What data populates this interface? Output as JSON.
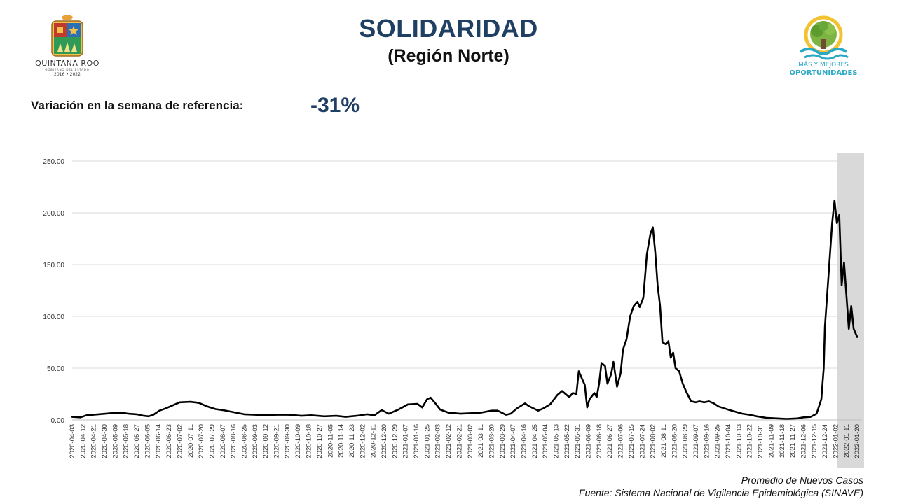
{
  "header": {
    "title": "SOLIDARIDAD",
    "subtitle": "(Región Norte)"
  },
  "logo_left": {
    "name": "QUINTANA ROO",
    "line2": "GOBIERNO DEL ESTADO",
    "line3": "2016 • 2022"
  },
  "logo_right": {
    "line1": "MÁS Y MEJORES",
    "line2": "OPORTUNIDADES"
  },
  "variation": {
    "label": "Variación en la semana de referencia:",
    "value": "-31%"
  },
  "captions": {
    "series": "Promedio de Nuevos Casos",
    "source": "Fuente: Sistema Nacional de Vigilancia Epidemiológica (SINAVE)"
  },
  "colors": {
    "title": "#1f3f63",
    "line": "#000000",
    "grid": "#d9d9d9",
    "shade": "#d9d9d9",
    "logo_teal": "#2aa8c4"
  },
  "chart_data": {
    "type": "line",
    "title": "",
    "xlabel": "",
    "ylabel": "",
    "ylim": [
      0,
      250
    ],
    "y_ticks": [
      "0.00",
      "50.00",
      "100.00",
      "150.00",
      "200.00",
      "250.00"
    ],
    "grid": true,
    "x_range": [
      "2020-04-03",
      "2022-01-24"
    ],
    "x_tick_labels": [
      "2020-04-03",
      "2020-04-12",
      "2020-04-21",
      "2020-04-30",
      "2020-05-09",
      "2020-05-18",
      "2020-05-27",
      "2020-06-05",
      "2020-06-14",
      "2020-06-23",
      "2020-07-02",
      "2020-07-11",
      "2020-07-20",
      "2020-07-29",
      "2020-08-07",
      "2020-08-16",
      "2020-08-25",
      "2020-09-03",
      "2020-09-12",
      "2020-09-21",
      "2020-09-30",
      "2020-10-09",
      "2020-10-18",
      "2020-10-27",
      "2020-11-05",
      "2020-11-14",
      "2020-11-23",
      "2020-12-02",
      "2020-12-11",
      "2020-12-20",
      "2020-12-29",
      "2021-01-07",
      "2021-01-16",
      "2021-01-25",
      "2021-02-03",
      "2021-02-12",
      "2021-02-21",
      "2021-03-02",
      "2021-03-11",
      "2021-03-20",
      "2021-03-29",
      "2021-04-07",
      "2021-04-16",
      "2021-04-25",
      "2021-05-04",
      "2021-05-13",
      "2021-05-22",
      "2021-05-31",
      "2021-06-09",
      "2021-06-18",
      "2021-06-27",
      "2021-07-06",
      "2021-07-15",
      "2021-07-24",
      "2021-08-02",
      "2021-08-11",
      "2021-08-20",
      "2021-08-29",
      "2021-09-07",
      "2021-09-16",
      "2021-09-25",
      "2021-10-04",
      "2021-10-13",
      "2021-10-22",
      "2021-10-31",
      "2021-11-09",
      "2021-11-18",
      "2021-11-27",
      "2021-12-06",
      "2021-12-15",
      "2021-12-24",
      "2022-01-02",
      "2022-01-11",
      "2022-01-20"
    ],
    "shaded_range": [
      "2022-01-03",
      "2022-01-24"
    ],
    "series": [
      {
        "name": "Promedio de Nuevos Casos",
        "points": [
          [
            "2020-04-03",
            3
          ],
          [
            "2020-04-10",
            2.5
          ],
          [
            "2020-04-15",
            4.5
          ],
          [
            "2020-04-25",
            5.5
          ],
          [
            "2020-05-05",
            6.5
          ],
          [
            "2020-05-15",
            7
          ],
          [
            "2020-05-20",
            6
          ],
          [
            "2020-05-27",
            5.5
          ],
          [
            "2020-06-02",
            4
          ],
          [
            "2020-06-06",
            3.5
          ],
          [
            "2020-06-10",
            5
          ],
          [
            "2020-06-15",
            9
          ],
          [
            "2020-06-20",
            11
          ],
          [
            "2020-06-26",
            14
          ],
          [
            "2020-07-02",
            17
          ],
          [
            "2020-07-11",
            17.5
          ],
          [
            "2020-07-18",
            16.5
          ],
          [
            "2020-07-25",
            13
          ],
          [
            "2020-08-01",
            10.5
          ],
          [
            "2020-08-07",
            9.5
          ],
          [
            "2020-08-16",
            7.5
          ],
          [
            "2020-08-25",
            5.5
          ],
          [
            "2020-09-03",
            5
          ],
          [
            "2020-09-12",
            4.5
          ],
          [
            "2020-09-21",
            5
          ],
          [
            "2020-10-01",
            5
          ],
          [
            "2020-10-12",
            4
          ],
          [
            "2020-10-20",
            4.5
          ],
          [
            "2020-10-31",
            3.5
          ],
          [
            "2020-11-10",
            4
          ],
          [
            "2020-11-18",
            3
          ],
          [
            "2020-11-27",
            4
          ],
          [
            "2020-12-06",
            5.5
          ],
          [
            "2020-12-12",
            4.5
          ],
          [
            "2020-12-18",
            9.5
          ],
          [
            "2020-12-24",
            6
          ],
          [
            "2021-01-01",
            10
          ],
          [
            "2021-01-09",
            15
          ],
          [
            "2021-01-17",
            15.5
          ],
          [
            "2021-01-21",
            12
          ],
          [
            "2021-01-25",
            20
          ],
          [
            "2021-01-28",
            21.5
          ],
          [
            "2021-02-01",
            16
          ],
          [
            "2021-02-05",
            10
          ],
          [
            "2021-02-12",
            7
          ],
          [
            "2021-02-22",
            6
          ],
          [
            "2021-03-02",
            6.5
          ],
          [
            "2021-03-11",
            7
          ],
          [
            "2021-03-20",
            9
          ],
          [
            "2021-03-25",
            9
          ],
          [
            "2021-04-01",
            5
          ],
          [
            "2021-04-05",
            6
          ],
          [
            "2021-04-10",
            11
          ],
          [
            "2021-04-17",
            16
          ],
          [
            "2021-04-20",
            13.5
          ],
          [
            "2021-04-28",
            9
          ],
          [
            "2021-05-02",
            11
          ],
          [
            "2021-05-08",
            15
          ],
          [
            "2021-05-14",
            24
          ],
          [
            "2021-05-18",
            28
          ],
          [
            "2021-05-24",
            22
          ],
          [
            "2021-05-27",
            26
          ],
          [
            "2021-05-30",
            25
          ],
          [
            "2021-06-01",
            47
          ],
          [
            "2021-06-04",
            39
          ],
          [
            "2021-06-06",
            34
          ],
          [
            "2021-06-08",
            12
          ],
          [
            "2021-06-10",
            20
          ],
          [
            "2021-06-14",
            26
          ],
          [
            "2021-06-16",
            22
          ],
          [
            "2021-06-18",
            35
          ],
          [
            "2021-06-20",
            55
          ],
          [
            "2021-06-23",
            52
          ],
          [
            "2021-06-25",
            35
          ],
          [
            "2021-06-28",
            44
          ],
          [
            "2021-06-30",
            56
          ],
          [
            "2021-07-03",
            32
          ],
          [
            "2021-07-06",
            45
          ],
          [
            "2021-07-08",
            68
          ],
          [
            "2021-07-11",
            78
          ],
          [
            "2021-07-14",
            100
          ],
          [
            "2021-07-17",
            110
          ],
          [
            "2021-07-20",
            114
          ],
          [
            "2021-07-22",
            109
          ],
          [
            "2021-07-25",
            118
          ],
          [
            "2021-07-28",
            160
          ],
          [
            "2021-07-31",
            180
          ],
          [
            "2021-08-02",
            186
          ],
          [
            "2021-08-04",
            162
          ],
          [
            "2021-08-06",
            130
          ],
          [
            "2021-08-08",
            110
          ],
          [
            "2021-08-10",
            75
          ],
          [
            "2021-08-13",
            73
          ],
          [
            "2021-08-15",
            76
          ],
          [
            "2021-08-17",
            60
          ],
          [
            "2021-08-19",
            65
          ],
          [
            "2021-08-21",
            50
          ],
          [
            "2021-08-24",
            47
          ],
          [
            "2021-08-27",
            35
          ],
          [
            "2021-08-30",
            27
          ],
          [
            "2021-09-03",
            18
          ],
          [
            "2021-09-07",
            17
          ],
          [
            "2021-09-10",
            18
          ],
          [
            "2021-09-14",
            17
          ],
          [
            "2021-09-18",
            18
          ],
          [
            "2021-09-22",
            16
          ],
          [
            "2021-09-26",
            13
          ],
          [
            "2021-10-04",
            10
          ],
          [
            "2021-10-10",
            8
          ],
          [
            "2021-10-16",
            6
          ],
          [
            "2021-10-22",
            5
          ],
          [
            "2021-10-28",
            3.5
          ],
          [
            "2021-11-05",
            2
          ],
          [
            "2021-11-14",
            1.5
          ],
          [
            "2021-11-22",
            1
          ],
          [
            "2021-12-01",
            1.5
          ],
          [
            "2021-12-06",
            2.5
          ],
          [
            "2021-12-12",
            3
          ],
          [
            "2021-12-17",
            6
          ],
          [
            "2021-12-21",
            20
          ],
          [
            "2021-12-23",
            50
          ],
          [
            "2021-12-24",
            90
          ],
          [
            "2021-12-27",
            140
          ],
          [
            "2021-12-30",
            190
          ],
          [
            "2022-01-01",
            212
          ],
          [
            "2022-01-03",
            190
          ],
          [
            "2022-01-05",
            198
          ],
          [
            "2022-01-07",
            130
          ],
          [
            "2022-01-09",
            152
          ],
          [
            "2022-01-11",
            120
          ],
          [
            "2022-01-13",
            88
          ],
          [
            "2022-01-15",
            110
          ],
          [
            "2022-01-17",
            88
          ],
          [
            "2022-01-20",
            80
          ]
        ]
      }
    ]
  }
}
